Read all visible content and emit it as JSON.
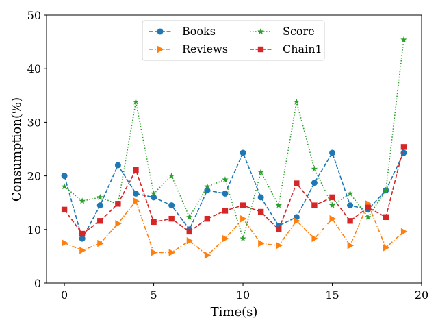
{
  "chart_data": {
    "type": "line",
    "xlabel": "Time(s)",
    "ylabel": "Consumption(%)",
    "xlim": [
      -1,
      20
    ],
    "ylim": [
      0,
      50
    ],
    "xticks": [
      0,
      5,
      10,
      15,
      20
    ],
    "yticks": [
      0,
      10,
      20,
      30,
      40,
      50
    ],
    "grid": false,
    "legend_position": "top-center",
    "x": [
      0,
      1,
      2,
      3,
      4,
      5,
      6,
      7,
      8,
      9,
      10,
      11,
      12,
      13,
      14,
      15,
      16,
      17,
      18,
      19
    ],
    "series": [
      {
        "name": "Books",
        "color": "#1f77b4",
        "marker": "circle",
        "dash": "dashed",
        "values": [
          20.0,
          8.3,
          14.5,
          22.0,
          16.7,
          16.0,
          14.5,
          10.0,
          17.3,
          16.7,
          24.3,
          16.0,
          10.7,
          12.3,
          18.7,
          24.3,
          14.5,
          13.7,
          17.3,
          24.3
        ]
      },
      {
        "name": "Reviews",
        "color": "#ff7f0e",
        "marker": "triangle-right",
        "dash": "dashdot",
        "values": [
          7.5,
          6.1,
          7.4,
          11.1,
          15.3,
          5.7,
          5.7,
          7.9,
          5.2,
          8.3,
          12.0,
          7.4,
          7.0,
          11.6,
          8.3,
          12.0,
          7.0,
          14.8,
          6.6,
          9.6
        ]
      },
      {
        "name": "Score",
        "color": "#2ca02c",
        "marker": "star",
        "dash": "dotted",
        "values": [
          18.0,
          15.3,
          16.0,
          14.7,
          33.8,
          16.7,
          20.0,
          12.3,
          18.0,
          19.3,
          8.3,
          20.7,
          14.5,
          33.8,
          21.3,
          14.5,
          16.7,
          12.3,
          17.3,
          45.4
        ]
      },
      {
        "name": "Chain1",
        "color": "#d62728",
        "marker": "square",
        "dash": "dashed",
        "values": [
          13.7,
          9.2,
          11.6,
          14.8,
          21.1,
          11.4,
          12.0,
          9.6,
          12.0,
          13.5,
          14.5,
          13.3,
          10.0,
          18.6,
          14.5,
          16.0,
          11.6,
          14.1,
          12.3,
          25.4
        ]
      }
    ]
  }
}
